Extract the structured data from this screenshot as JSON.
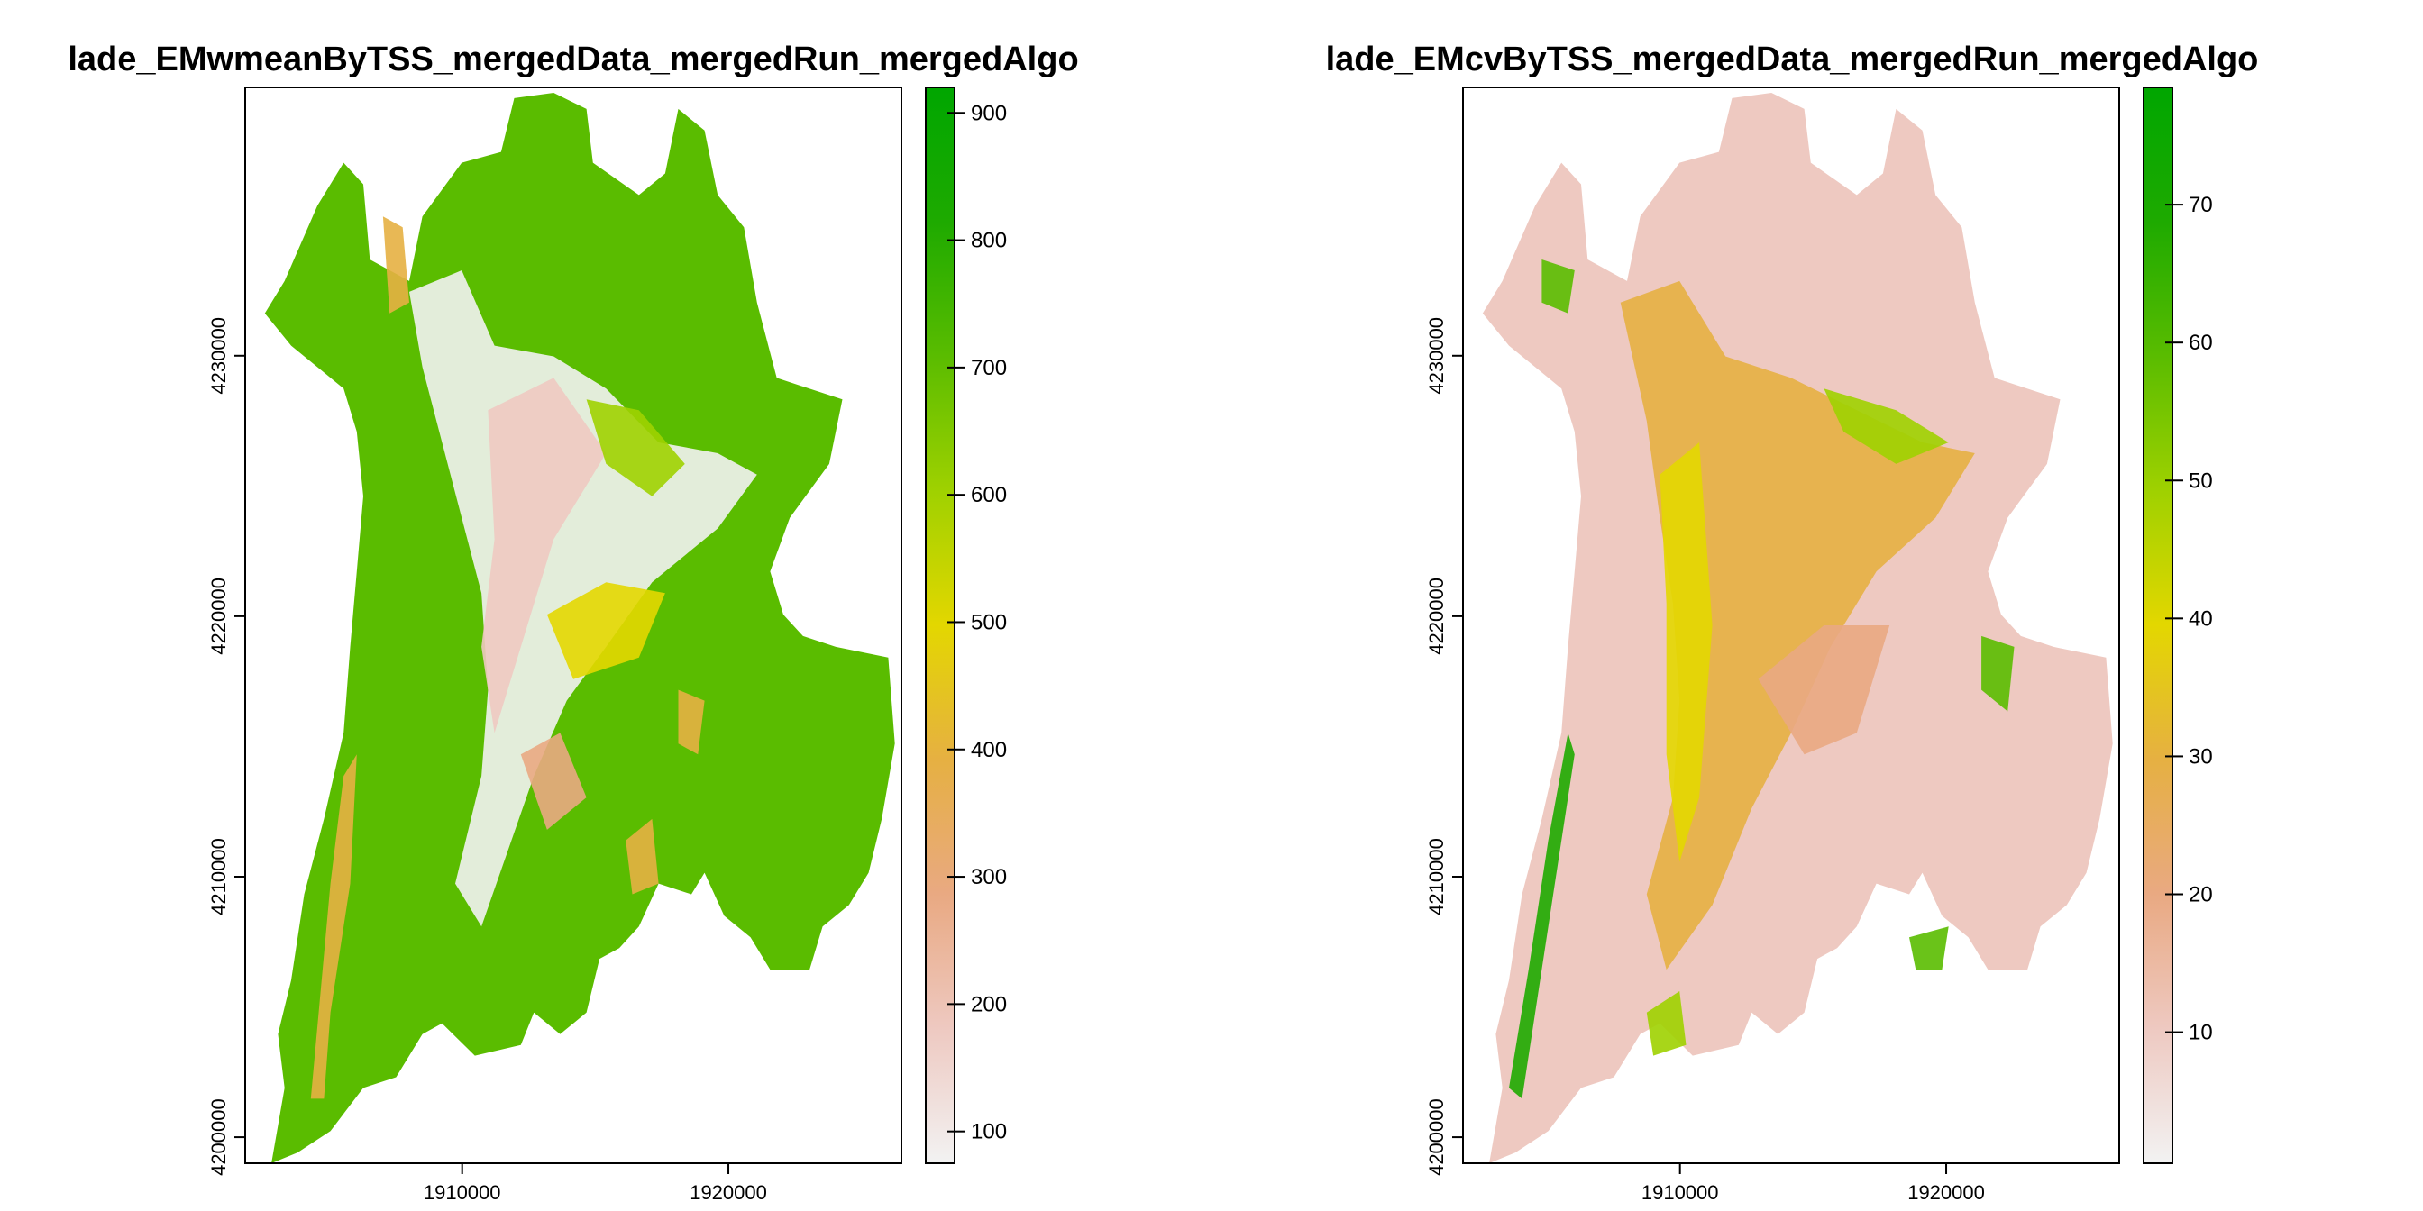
{
  "chart_data": [
    {
      "type": "heatmap",
      "title": "lade_EMwmeanByTSS_mergedData_mergedRun_mergedAlgo",
      "xlabel": "",
      "ylabel": "",
      "xlim": [
        1901850,
        1926500
      ],
      "ylim": [
        4199000,
        4240300
      ],
      "x_ticks": [
        1910000,
        1920000
      ],
      "x_tick_labels": [
        "1910000",
        "1920000"
      ],
      "y_ticks": [
        4200000,
        4210000,
        4220000,
        4230000
      ],
      "y_tick_labels": [
        "4200000",
        "4210000",
        "4220000",
        "4230000"
      ],
      "legend": {
        "placement": "right",
        "range": [
          75,
          920
        ],
        "ticks": [
          100,
          200,
          300,
          400,
          500,
          600,
          700,
          800,
          900
        ],
        "tick_labels": [
          "100",
          "200",
          "300",
          "400",
          "500",
          "600",
          "700",
          "800",
          "900"
        ],
        "palette": [
          "#f2f2f2",
          "#eec9c1",
          "#e9a982",
          "#e6b042",
          "#e3d700",
          "#9fd100",
          "#5abc00",
          "#1eaa00",
          "#00a600"
        ]
      },
      "grid": false
    },
    {
      "type": "heatmap",
      "title": "lade_EMcvByTSS_mergedData_mergedRun_mergedAlgo",
      "xlabel": "",
      "ylabel": "",
      "xlim": [
        1901850,
        1926500
      ],
      "ylim": [
        4199000,
        4240300
      ],
      "x_ticks": [
        1910000,
        1920000
      ],
      "x_tick_labels": [
        "1910000",
        "1920000"
      ],
      "y_ticks": [
        4200000,
        4210000,
        4220000,
        4230000
      ],
      "y_tick_labels": [
        "4200000",
        "4210000",
        "4220000",
        "4230000"
      ],
      "legend": {
        "placement": "right",
        "range": [
          0.5,
          78.5
        ],
        "ticks": [
          10,
          20,
          30,
          40,
          50,
          60,
          70
        ],
        "tick_labels": [
          "10",
          "20",
          "30",
          "40",
          "50",
          "60",
          "70"
        ],
        "palette": [
          "#f2f2f2",
          "#eec9c1",
          "#e9a982",
          "#e6b042",
          "#e3d700",
          "#9fd100",
          "#5abc00",
          "#1eaa00",
          "#00a600"
        ]
      },
      "grid": false
    }
  ]
}
